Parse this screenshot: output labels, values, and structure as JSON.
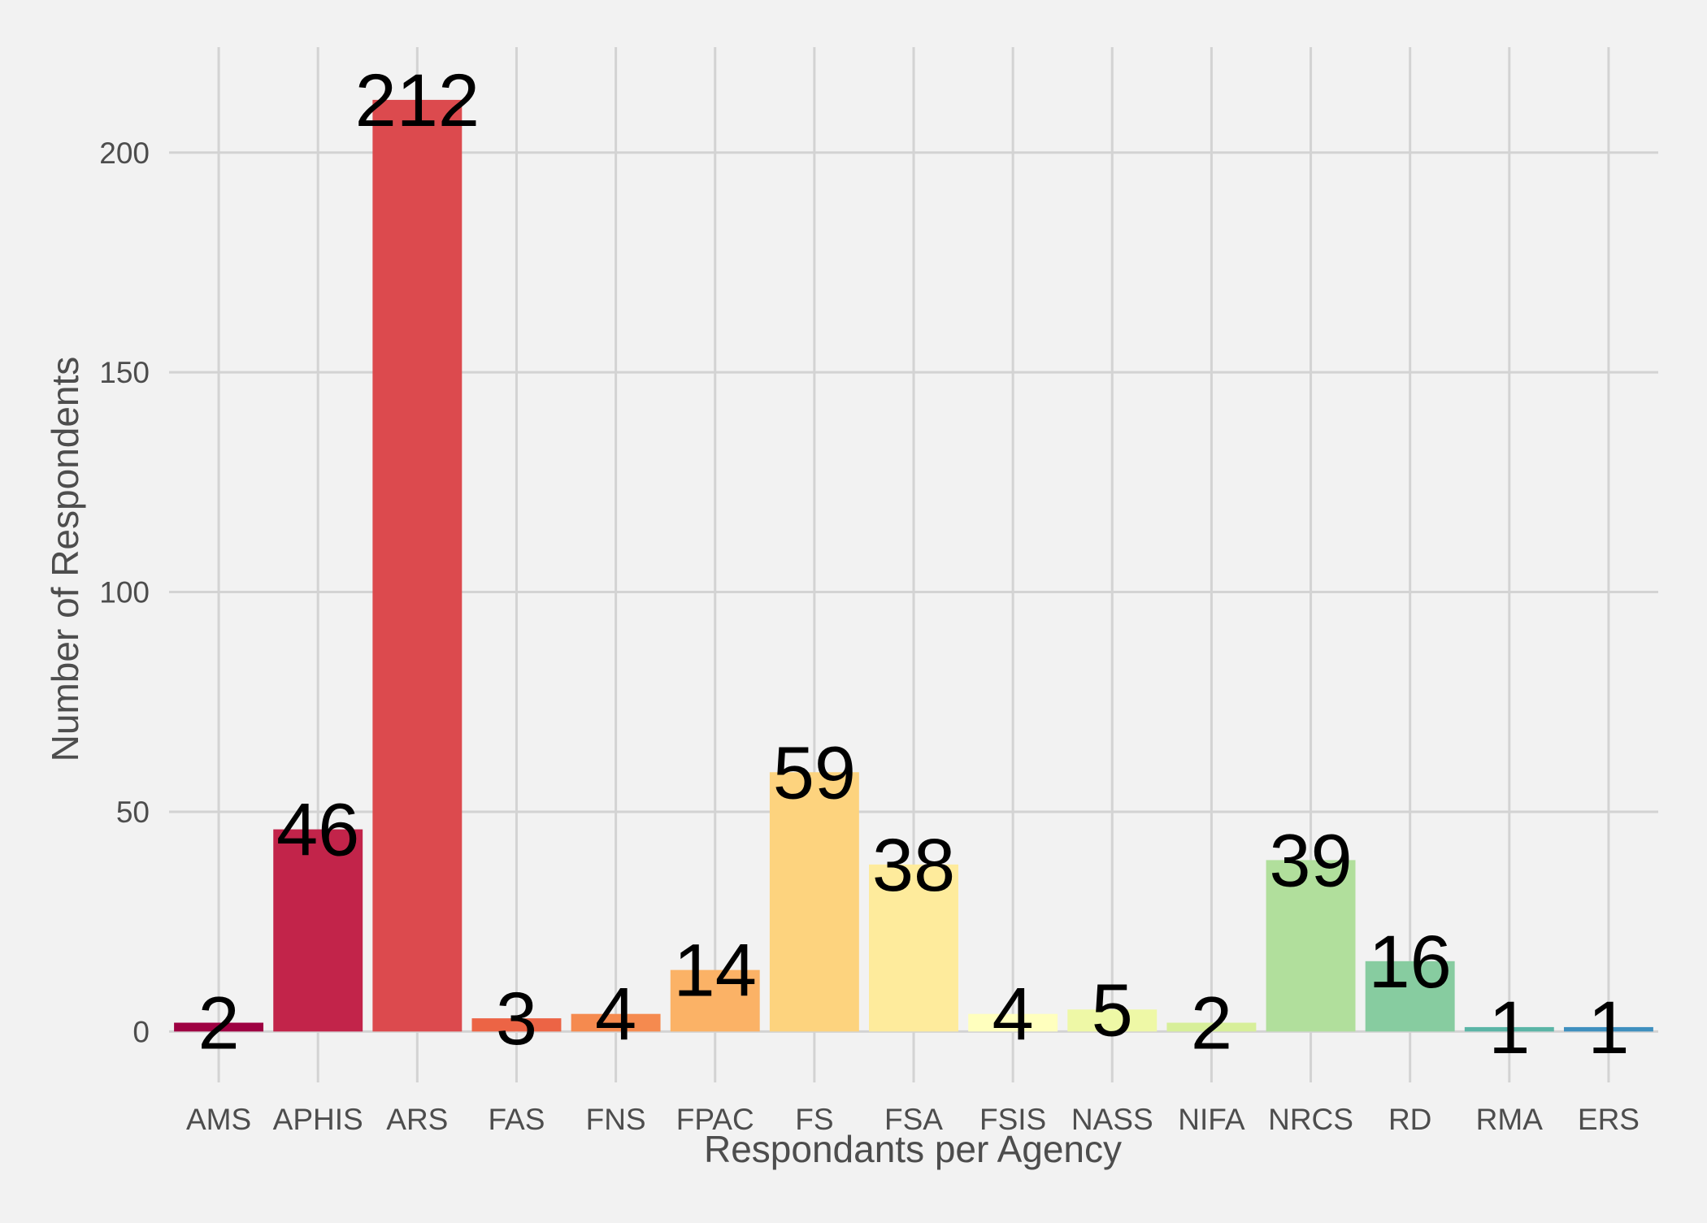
{
  "chart_data": {
    "type": "bar",
    "title": "",
    "xlabel": "Respondants per Agency",
    "ylabel": "Number of Respondents",
    "categories": [
      "AMS",
      "APHIS",
      "ARS",
      "FAS",
      "FNS",
      "FPAC",
      "FS",
      "FSA",
      "FSIS",
      "NASS",
      "NIFA",
      "NRCS",
      "RD",
      "RMA",
      "ERS"
    ],
    "values": [
      2,
      46,
      212,
      3,
      4,
      14,
      59,
      38,
      4,
      5,
      2,
      39,
      16,
      1,
      1
    ],
    "colors": [
      "#9e0142",
      "#c2244a",
      "#dc4a4e",
      "#ec6445",
      "#f58a4f",
      "#fbb266",
      "#fdd37e",
      "#feeb9c",
      "#ffffbe",
      "#eef8a6",
      "#d7ef9a",
      "#b1df9c",
      "#87cca0",
      "#5bb5a6",
      "#3f90bf"
    ],
    "ylim": [
      -9,
      224
    ],
    "yticks": [
      0,
      50,
      100,
      150,
      200
    ],
    "grid": true,
    "legend": "none",
    "background": "#f2f2f2",
    "gridColor": "#d3d3d3"
  }
}
